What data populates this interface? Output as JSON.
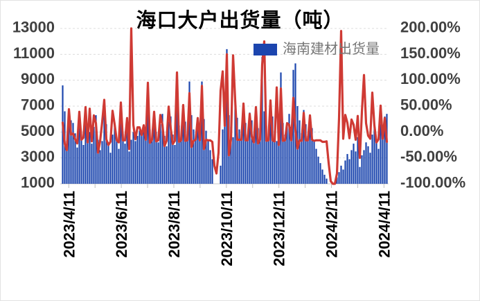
{
  "title": "海口大户出货量（吨）",
  "legend": {
    "series_label": "海南建材出货量"
  },
  "colors": {
    "bar": "#1C45AE",
    "line": "#CF3A34",
    "grid": "#DCDCDC",
    "axis_line": "#C9C9C9",
    "tick_mark": "#BFBFBF",
    "y_label": "#404040",
    "x_label": "#000000",
    "legend_text": "#767676",
    "title_text": "#000000",
    "background": "#FFFFFF"
  },
  "chart_data": {
    "type": "bar+line combo",
    "title": "海口大户出货量（吨）",
    "legend_entries": [
      "海南建材出货量"
    ],
    "legend_position": "top-right-inside",
    "grid": "horizontal-dashed",
    "left_axis": {
      "tick_labels": [
        "13000",
        "11000",
        "9000",
        "7000",
        "5000",
        "3000",
        "1000"
      ],
      "min": 1000,
      "max": 13000,
      "step": 2000
    },
    "right_axis": {
      "tick_labels": [
        "200.00%",
        "150.00%",
        "100.00%",
        "50.00%",
        "0.00%",
        "-50.00%",
        "-100.00%"
      ],
      "min": -100,
      "max": 200,
      "step": 50,
      "unit": "%"
    },
    "x_axis": {
      "visible_labels": [
        "2023/4/11",
        "2023/6/11",
        "2023/8/11",
        "2023/10/11",
        "2023/12/11",
        "2024/2/11",
        "2024/4/11"
      ],
      "month_tick_count": 13,
      "label_rotation_deg": -90,
      "range": "daily-style series from 2023/4/11 to 2024/4/11"
    },
    "series": [
      {
        "id": "bar-series",
        "name": "海南建材出货量",
        "type": "bar",
        "axis": "left",
        "unit": "吨",
        "values": [
          8600,
          6600,
          4300,
          6200,
          5900,
          5700,
          4900,
          3800,
          5300,
          4500,
          4000,
          5900,
          4700,
          5000,
          4100,
          5400,
          6300,
          4400,
          3600,
          4300,
          6500,
          5600,
          4200,
          3400,
          4800,
          5500,
          4600,
          3700,
          5800,
          4900,
          4100,
          5200,
          3500,
          4400,
          5000,
          4300,
          4700,
          5100,
          4800,
          5400,
          4600,
          6600,
          5200,
          4400,
          6100,
          5000,
          4200,
          5600,
          6400,
          4700,
          3900,
          5800,
          6200,
          4800,
          4000,
          6800,
          5500,
          4600,
          7000,
          5800,
          4900,
          8900,
          6300,
          5200,
          4400,
          5600,
          4700,
          8900,
          6000,
          5100,
          4300,
          3600,
          2900,
          1000,
          1000,
          1000,
          2400,
          5200,
          5800,
          11400,
          6300,
          5400,
          4600,
          7200,
          6100,
          5200,
          4400,
          6800,
          5700,
          4800,
          6500,
          5900,
          4700,
          6800,
          5300,
          4500,
          10800,
          6600,
          5500,
          4600,
          7400,
          6200,
          5100,
          4300,
          5200,
          9600,
          5700,
          4800,
          5600,
          6400,
          5400,
          9800,
          10300,
          7000,
          5900,
          4900,
          6700,
          5600,
          4700,
          6200,
          5300,
          4400,
          3700,
          3100,
          2600,
          2100,
          1700,
          1400,
          1000,
          1000,
          1000,
          1000,
          1500,
          1900,
          2400,
          2100,
          2800,
          3300,
          2900,
          3600,
          4100,
          3500,
          4600,
          2300,
          3200,
          3600,
          4200,
          3900,
          3400,
          4800,
          5400,
          4300,
          3700,
          5600,
          4900,
          6200,
          6400
        ]
      },
      {
        "id": "line-series",
        "name": "",
        "type": "line",
        "axis": "right",
        "unit": "%",
        "values": [
          18,
          -23,
          -35,
          44,
          -5,
          -3,
          -14,
          -22,
          39,
          -15,
          -11,
          48,
          -20,
          45,
          -18,
          32,
          17,
          -40,
          -18,
          19,
          62,
          -14,
          -25,
          -19,
          41,
          15,
          -16,
          -20,
          57,
          -16,
          -16,
          27,
          -33,
          200,
          14,
          -14,
          9,
          9,
          -6,
          13,
          -15,
          95,
          -21,
          -15,
          39,
          -18,
          -16,
          33,
          14,
          -27,
          -17,
          49,
          7,
          -23,
          -17,
          115,
          -19,
          -16,
          52,
          -17,
          -16,
          75,
          -29,
          -17,
          -15,
          27,
          -16,
          89,
          -33,
          -15,
          -16,
          -16,
          -19,
          -65,
          -80,
          -40,
          80,
          117,
          12,
          150,
          -45,
          -14,
          148,
          62,
          -15,
          -15,
          -15,
          55,
          -16,
          -16,
          35,
          -9,
          -20,
          48,
          -22,
          -15,
          130,
          175,
          -17,
          -16,
          61,
          -16,
          -18,
          86,
          -25,
          84,
          -17,
          -16,
          17,
          14,
          -16,
          66,
          5,
          -32,
          -16,
          -17,
          37,
          -16,
          -16,
          32,
          -15,
          -17,
          -16,
          -16,
          -16,
          -19,
          -19,
          -18,
          -60,
          -95,
          -100,
          -100,
          -80,
          27,
          195,
          -13,
          33,
          18,
          -12,
          24,
          14,
          -15,
          31,
          -50,
          39,
          110,
          17,
          -7,
          -13,
          76,
          13,
          -20,
          -14,
          51,
          -13,
          27,
          -19
        ]
      }
    ]
  }
}
